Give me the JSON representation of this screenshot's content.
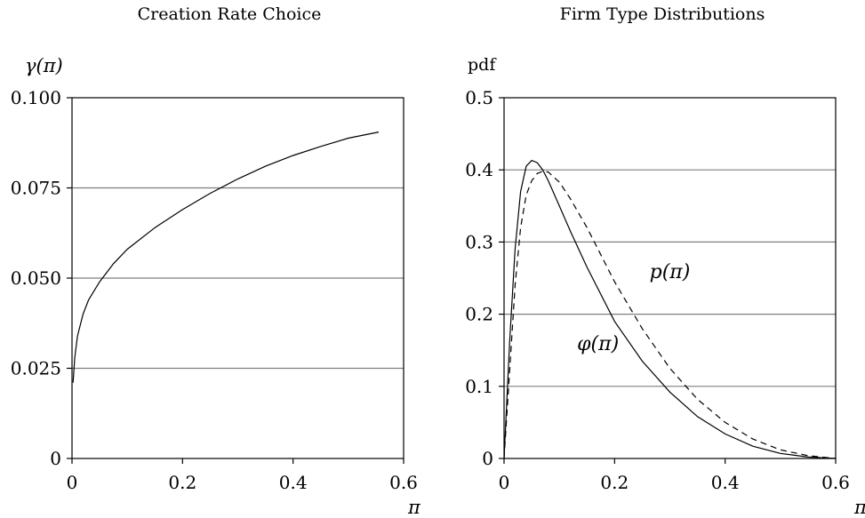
{
  "chart_data": [
    {
      "type": "line",
      "title": "Creation Rate Choice",
      "ylabel": "γ(π)",
      "xlabel": "π",
      "xlim": [
        0,
        0.6
      ],
      "ylim": [
        0,
        0.1
      ],
      "xticks": [
        "0",
        "0.2",
        "0.4",
        "0.6"
      ],
      "yticks": [
        "0",
        "0.025",
        "0.050",
        "0.075",
        "0.100"
      ],
      "grid": "horizontal",
      "series": [
        {
          "style": "solid",
          "x": [
            0.002,
            0.005,
            0.01,
            0.02,
            0.03,
            0.05,
            0.075,
            0.1,
            0.15,
            0.2,
            0.25,
            0.3,
            0.35,
            0.4,
            0.45,
            0.5,
            0.555
          ],
          "y": [
            0.021,
            0.028,
            0.034,
            0.04,
            0.044,
            0.049,
            0.054,
            0.058,
            0.064,
            0.069,
            0.0735,
            0.0775,
            0.081,
            0.084,
            0.0865,
            0.0888,
            0.0905
          ]
        }
      ]
    },
    {
      "type": "line",
      "title": "Firm Type Distributions",
      "ylabel": "pdf",
      "xlabel": "π",
      "xlim": [
        0,
        0.6
      ],
      "ylim": [
        0,
        0.5
      ],
      "xticks": [
        "0",
        "0.2",
        "0.4",
        "0.6"
      ],
      "yticks": [
        "0",
        "0.1",
        "0.2",
        "0.3",
        "0.4",
        "0.5"
      ],
      "grid": "horizontal",
      "series": [
        {
          "name": "φ(π)",
          "style": "solid",
          "x": [
            0,
            0.01,
            0.02,
            0.03,
            0.04,
            0.05,
            0.06,
            0.07,
            0.08,
            0.1,
            0.12,
            0.15,
            0.2,
            0.25,
            0.3,
            0.35,
            0.4,
            0.45,
            0.5,
            0.55,
            0.6
          ],
          "y": [
            0,
            0.16,
            0.29,
            0.37,
            0.405,
            0.413,
            0.41,
            0.4,
            0.385,
            0.35,
            0.315,
            0.265,
            0.19,
            0.135,
            0.092,
            0.058,
            0.034,
            0.017,
            0.007,
            0.002,
            0
          ]
        },
        {
          "name": "p(π)",
          "style": "dashed",
          "x": [
            0,
            0.01,
            0.02,
            0.03,
            0.04,
            0.05,
            0.06,
            0.07,
            0.08,
            0.1,
            0.12,
            0.15,
            0.2,
            0.25,
            0.3,
            0.35,
            0.4,
            0.45,
            0.5,
            0.55,
            0.6
          ],
          "y": [
            0,
            0.12,
            0.24,
            0.32,
            0.365,
            0.385,
            0.395,
            0.398,
            0.397,
            0.383,
            0.36,
            0.32,
            0.245,
            0.18,
            0.125,
            0.082,
            0.05,
            0.027,
            0.012,
            0.004,
            0
          ]
        }
      ],
      "annotations": [
        {
          "text": "p(π)",
          "x": 0.3,
          "y": 0.25
        },
        {
          "text": "φ(π)",
          "x": 0.17,
          "y": 0.15
        }
      ]
    }
  ],
  "colors": {
    "line": "#000000",
    "grid": "#7f7f7f",
    "background": "#ffffff"
  }
}
